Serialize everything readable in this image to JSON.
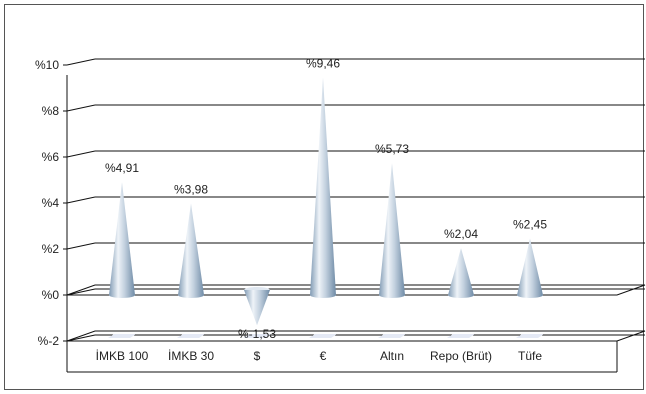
{
  "chart_data": {
    "type": "bar",
    "categories": [
      "İMKB 100",
      "İMKB 30",
      "$",
      "€",
      "Altın",
      "Repo (Brüt)",
      "Tüfe"
    ],
    "values": [
      4.91,
      3.98,
      -1.53,
      9.46,
      5.73,
      2.04,
      2.45
    ],
    "value_labels": [
      "%4,91",
      "%3,98",
      "%-1,53",
      "%9,46",
      "%5,73",
      "%2,04",
      "%2,45"
    ],
    "yticks": [
      -2,
      0,
      2,
      4,
      6,
      8,
      10
    ],
    "ytick_labels": [
      "%-2",
      "%0",
      "%2",
      "%4",
      "%6",
      "%8",
      "%10"
    ],
    "ylim": [
      -2,
      10
    ],
    "grid": true,
    "title": "",
    "xlabel": "",
    "ylabel": "",
    "colors": {
      "cone_light": "#eef3f8",
      "cone_mid": "#b8c9da",
      "cone_dark": "#6f8ba6",
      "floor": "#e4e9f5",
      "grid": "#111111"
    }
  }
}
